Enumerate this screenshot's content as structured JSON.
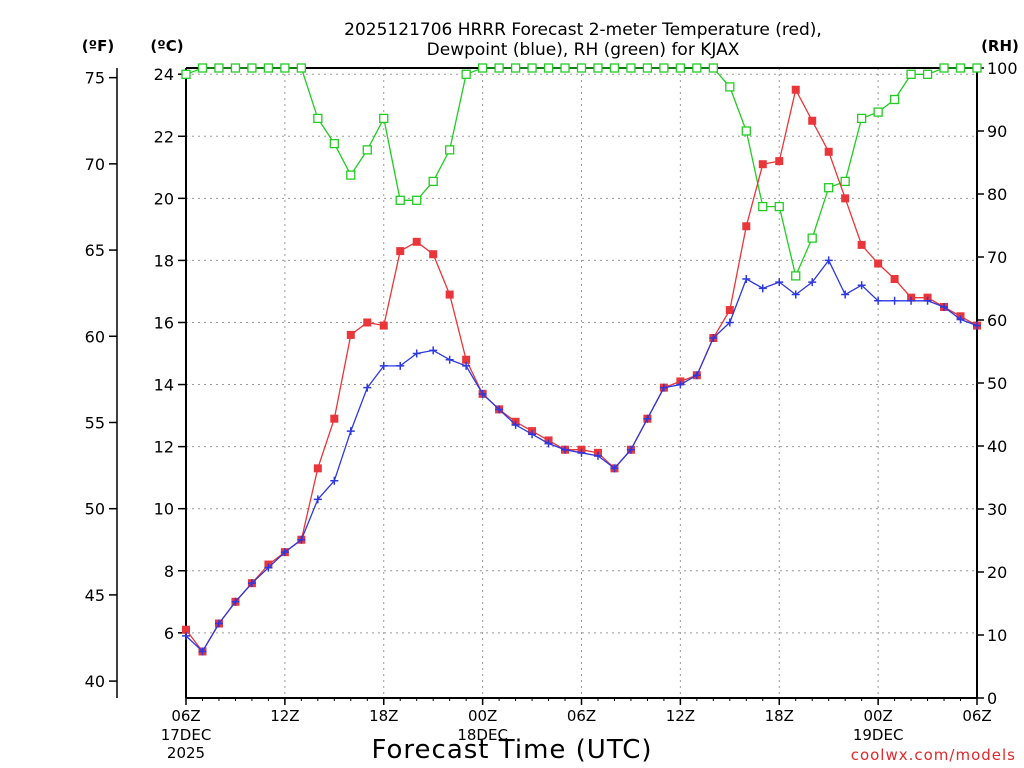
{
  "chart_data": {
    "type": "line",
    "title_line1": "2025121706 HRRR Forecast 2-meter Temperature (red),",
    "title_line2": "Dewpoint (blue), RH (green) for KJAX",
    "xlabel": "Forecast Time (UTC)",
    "credit": "coolwx.com/models",
    "unit_f": "(ºF)",
    "unit_c": "(ºC)",
    "unit_rh": "(RH)",
    "x_range_hours": [
      0,
      48
    ],
    "x_ticks": [
      {
        "hour": 0,
        "label": "06Z",
        "date": "17DEC",
        "year": "2025"
      },
      {
        "hour": 6,
        "label": "12Z",
        "date": "",
        "year": ""
      },
      {
        "hour": 12,
        "label": "18Z",
        "date": "",
        "year": ""
      },
      {
        "hour": 18,
        "label": "00Z",
        "date": "18DEC",
        "year": ""
      },
      {
        "hour": 24,
        "label": "06Z",
        "date": "",
        "year": ""
      },
      {
        "hour": 30,
        "label": "12Z",
        "date": "",
        "year": ""
      },
      {
        "hour": 36,
        "label": "18Z",
        "date": "",
        "year": ""
      },
      {
        "hour": 42,
        "label": "00Z",
        "date": "19DEC",
        "year": ""
      },
      {
        "hour": 48,
        "label": "06Z",
        "date": "",
        "year": ""
      }
    ],
    "ylim_c": [
      3.9,
      24.2
    ],
    "y_ticks_c": [
      "6",
      "8",
      "10",
      "12",
      "14",
      "16",
      "18",
      "20",
      "22",
      "24"
    ],
    "y_ticks_f": [
      "40",
      "45",
      "50",
      "55",
      "60",
      "65",
      "70",
      "75"
    ],
    "ylim_rh": [
      0,
      100
    ],
    "y_ticks_rh": [
      "0",
      "10",
      "20",
      "30",
      "40",
      "50",
      "60",
      "70",
      "80",
      "90",
      "100"
    ],
    "colors": {
      "temperature": "#e8363b",
      "dewpoint": "#2d38e0",
      "rh": "#22cc22",
      "grid": "#9a9a9a"
    },
    "series": [
      {
        "name": "Temperature",
        "unit": "C",
        "values": [
          6.1,
          5.4,
          6.3,
          7.0,
          7.6,
          8.2,
          8.6,
          9.0,
          11.3,
          12.9,
          15.6,
          16.0,
          15.9,
          18.3,
          18.6,
          18.2,
          16.9,
          14.8,
          13.7,
          13.2,
          12.8,
          12.5,
          12.2,
          11.9,
          11.9,
          11.8,
          11.3,
          11.9,
          12.9,
          13.9,
          14.1,
          14.3,
          15.5,
          16.4,
          19.1,
          21.1,
          21.2,
          23.5,
          22.5,
          21.5,
          20.0,
          18.5,
          17.9,
          17.4,
          16.8,
          16.8,
          16.5,
          16.2,
          15.9
        ]
      },
      {
        "name": "Dewpoint",
        "unit": "C",
        "values": [
          5.9,
          5.4,
          6.3,
          7.0,
          7.6,
          8.1,
          8.6,
          9.0,
          10.3,
          10.9,
          12.5,
          13.9,
          14.6,
          14.6,
          15.0,
          15.1,
          14.8,
          14.6,
          13.7,
          13.2,
          12.7,
          12.4,
          12.1,
          11.9,
          11.8,
          11.7,
          11.3,
          11.9,
          12.9,
          13.9,
          14.0,
          14.3,
          15.5,
          16.0,
          17.4,
          17.1,
          17.3,
          16.9,
          17.3,
          18.0,
          16.9,
          17.2,
          16.7,
          16.7,
          16.7,
          16.7,
          16.5,
          16.1,
          15.9
        ]
      },
      {
        "name": "RH",
        "unit": "%",
        "values": [
          99,
          100,
          100,
          100,
          100,
          100,
          100,
          100,
          92,
          88,
          83,
          87,
          92,
          79,
          79,
          82,
          87,
          99,
          100,
          100,
          100,
          100,
          100,
          100,
          100,
          100,
          100,
          100,
          100,
          100,
          100,
          100,
          100,
          97,
          90,
          78,
          78,
          67,
          73,
          81,
          82,
          92,
          93,
          95,
          99,
          99,
          100,
          100,
          100
        ]
      }
    ]
  }
}
